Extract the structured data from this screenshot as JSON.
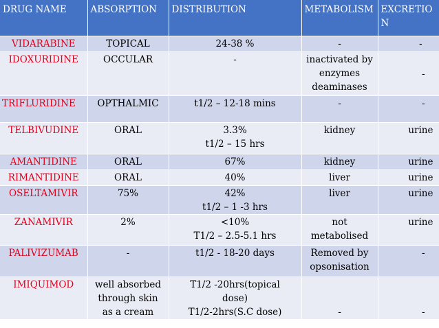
{
  "header": [
    "DRUG NAME",
    "ABSORPTION",
    "DISTRIBUTION",
    "METABOLISM",
    "EXCRETIO\nN"
  ],
  "rows": [
    {
      "drug": "VIDARABINE",
      "absorption": "TOPICAL",
      "distribution": "24-38 %",
      "metabolism": "-",
      "excretion": "-"
    },
    {
      "drug": "IDOXURIDINE",
      "absorption": "OCCULAR",
      "distribution": "-",
      "metabolism": "inactivated by\nenzymes\ndeaminases",
      "excretion": "-"
    },
    {
      "drug": "TRIFLURIDINE",
      "absorption": "OPTHALMIC",
      "distribution": "t1/2 – 12-18 mins",
      "metabolism": "-",
      "excretion": "-"
    },
    {
      "drug": "TELBIVUDINE",
      "absorption": "ORAL",
      "distribution": "3.3%\nt1/2 – 15 hrs",
      "metabolism": "kidney",
      "excretion": "urine"
    },
    {
      "drug": "AMANTIDINE",
      "absorption": "ORAL",
      "distribution": "67%",
      "metabolism": "kidney",
      "excretion": "urine"
    },
    {
      "drug": "RIMANTIDINE",
      "absorption": "ORAL",
      "distribution": "40%",
      "metabolism": "liver",
      "excretion": "urine"
    },
    {
      "drug": "OSELTAMIVIR",
      "absorption": "75%",
      "distribution": "42%\nt1/2 – 1 -3 hrs",
      "metabolism": "liver",
      "excretion": "urine"
    },
    {
      "drug": "ZANAMIVIR",
      "absorption": "2%",
      "distribution": "<10%\nT1/2 – 2.5-5.1 hrs",
      "metabolism": "not\nmetabolised",
      "excretion": "urine"
    },
    {
      "drug": "PALIVIZUMAB",
      "absorption": "-",
      "distribution": "t1/2  - 18-20 days",
      "metabolism": "Removed by\nopsonisation",
      "excretion": "-"
    },
    {
      "drug": "IMIQUIMOD",
      "absorption": "well absorbed\nthrough skin\nas a cream",
      "distribution": "T1/2 -20hrs(topical\ndose)\nT1/2-2hrs(S.C dose)",
      "metabolism": "-",
      "excretion": "-"
    }
  ],
  "colors": {
    "header_bg": "#4472c4",
    "row_odd": "#cfd5ea",
    "row_even": "#e9ebf5",
    "drug_text": "#e2001a"
  }
}
